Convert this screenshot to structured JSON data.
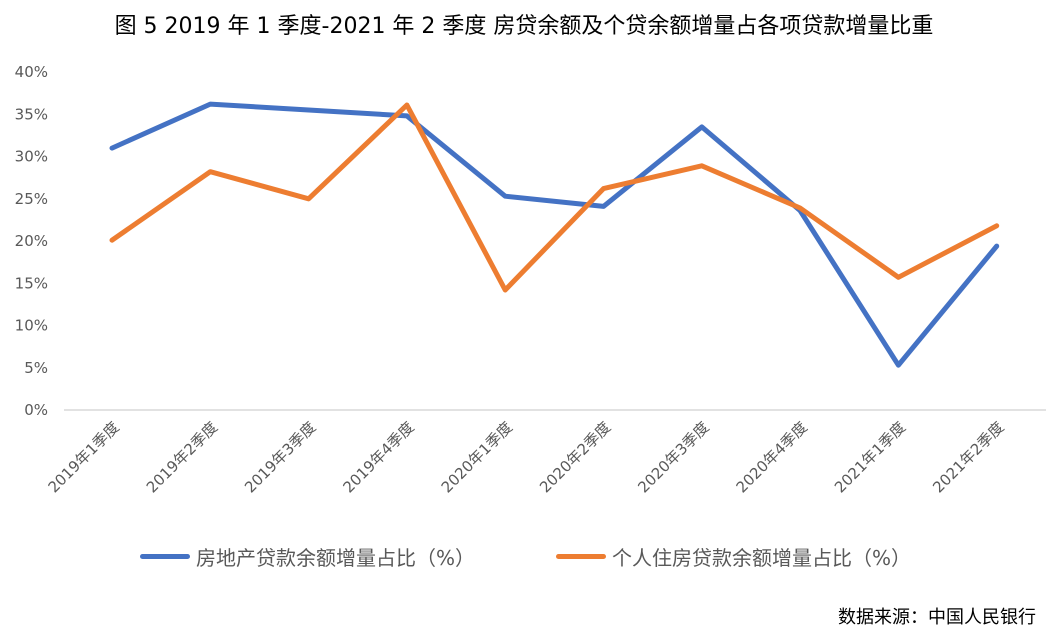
{
  "title": "图 5 2019 年 1 季度-2021 年 2 季度  房贷余额及个贷余额增量占各项贷款增量比重",
  "source": "数据来源：中国人民银行",
  "colors": {
    "series1": "#4472C4",
    "series2": "#ED7D31",
    "axis": "#D9D9D9",
    "tick_text": "#595959"
  },
  "legend": [
    {
      "label": "房地产贷款余额增量占比（%）",
      "color": "#4472C4"
    },
    {
      "label": "个人住房贷款余额增量占比（%）",
      "color": "#ED7D31"
    }
  ],
  "chart_data": {
    "type": "line",
    "title": "图 5 2019 年 1 季度-2021 年 2 季度  房贷余额及个贷余额增量占各项贷款增量比重",
    "xlabel": "",
    "ylabel": "",
    "ylim": [
      0,
      40
    ],
    "yticks": [
      "0%",
      "5%",
      "10%",
      "15%",
      "20%",
      "25%",
      "30%",
      "35%",
      "40%"
    ],
    "grid": false,
    "legend_position": "bottom",
    "categories": [
      "2019年1季度",
      "2019年2季度",
      "2019年3季度",
      "2019年4季度",
      "2020年1季度",
      "2020年2季度",
      "2020年3季度",
      "2020年4季度",
      "2021年1季度",
      "2021年2季度"
    ],
    "series": [
      {
        "name": "房地产贷款余额增量占比（%）",
        "color": "#4472C4",
        "values": [
          31.0,
          36.2,
          35.5,
          34.8,
          25.3,
          24.1,
          33.5,
          23.6,
          5.3,
          19.4
        ]
      },
      {
        "name": "个人住房贷款余额增量占比（%）",
        "color": "#ED7D31",
        "values": [
          20.1,
          28.2,
          25.0,
          36.1,
          14.2,
          26.2,
          28.9,
          23.9,
          15.7,
          21.8
        ]
      }
    ],
    "source": "数据来源：中国人民银行"
  }
}
